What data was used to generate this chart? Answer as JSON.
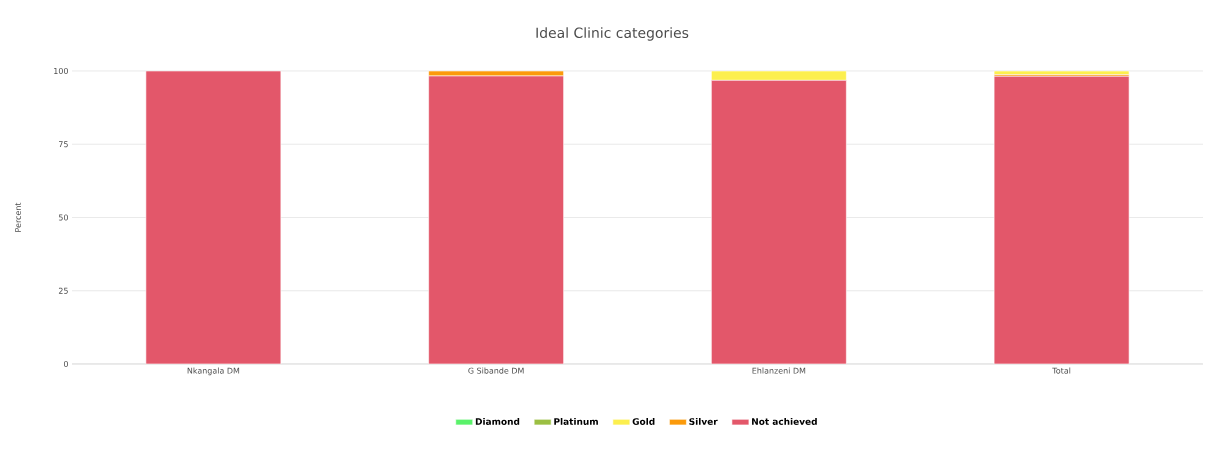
{
  "chart_data": {
    "type": "bar",
    "title": "Ideal Clinic categories",
    "ylabel": "Percent",
    "categories": [
      "Nkangala DM",
      "G Sibande DM",
      "Ehlanzeni DM",
      "Total"
    ],
    "stacked": true,
    "series": [
      {
        "name": "Not achieved",
        "color": "#e3576a",
        "values": [
          100,
          98.3,
          96.8,
          98.2
        ]
      },
      {
        "name": "Silver",
        "color": "#fb9a0b",
        "values": [
          0,
          1.7,
          0,
          0.6
        ]
      },
      {
        "name": "Gold",
        "color": "#fcef4e",
        "values": [
          0,
          0,
          3.2,
          1.2
        ]
      },
      {
        "name": "Platinum",
        "color": "#9bbf42",
        "values": [
          0,
          0,
          0,
          0
        ]
      },
      {
        "name": "Diamond",
        "color": "#5af26a",
        "values": [
          0,
          0,
          0,
          0
        ]
      }
    ],
    "ylim": [
      0,
      100
    ],
    "yticks": [
      0,
      25,
      50,
      75,
      100
    ],
    "grid": "y",
    "legend": "bottom"
  }
}
